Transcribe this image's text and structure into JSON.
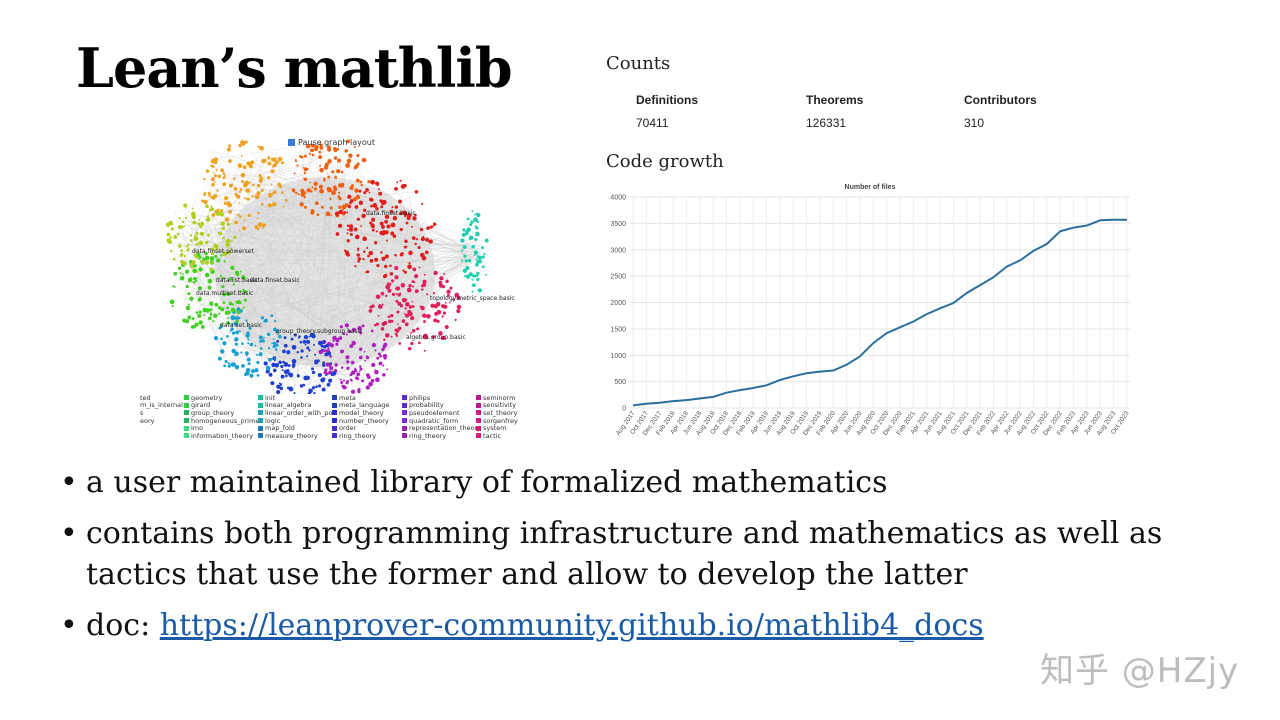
{
  "slide": {
    "title": "Lean’s mathlib",
    "graph": {
      "pause_label": "Pause graph layout",
      "node_labels": [
        "data.finset.basic",
        "data.finset.powerset",
        "data.list.basic",
        "data.finset.basic",
        "data.multiset.basic",
        "topology.metric_space.basic",
        "data.set.basic",
        "group_theory.subgroup.basic",
        "algebra.group.basic"
      ],
      "legend": [
        [
          "ted",
          "m_is_internal",
          "s",
          "eory"
        ],
        [
          "geometry",
          "girard",
          "group_theory",
          "homogeneous_prime",
          "imo",
          "information_theory"
        ],
        [
          "init",
          "linear_algebra",
          "linear_order_with_pos",
          "logic",
          "map_fold",
          "measure_theory"
        ],
        [
          "meta",
          "meta_language",
          "model_theory",
          "number_theory",
          "order",
          "ring_theory"
        ],
        [
          "philips",
          "probability",
          "pseudoelement",
          "quadratic_form",
          "representation_theory",
          "ring_theory"
        ],
        [
          "seminorm",
          "sensitivity",
          "set_theory",
          "sorgenfrey",
          "system",
          "tactic"
        ]
      ],
      "legend_colors": [
        [
          "#aaaaaa",
          "#aaaaaa",
          "#aaaaaa",
          "#aaaaaa"
        ],
        [
          "#2ecc40",
          "#2ecc40",
          "#27ae60",
          "#27ae60",
          "#3ddc84",
          "#3ddc84"
        ],
        [
          "#1abc9c",
          "#1abc9c",
          "#17a2b8",
          "#17a2b8",
          "#1f77b4",
          "#1f77b4"
        ],
        [
          "#1f3fbf",
          "#1f3fbf",
          "#2b2bd6",
          "#2b2bd6",
          "#4b2bd6",
          "#4b2bd6"
        ],
        [
          "#5b2bd6",
          "#5b2bd6",
          "#7b2bd6",
          "#7b2bd6",
          "#9b27b0",
          "#9b27b0"
        ],
        [
          "#c0198e",
          "#c0198e",
          "#d6198e",
          "#d6198e",
          "#e0197a",
          "#e0197a"
        ]
      ]
    },
    "counts": {
      "heading": "Counts",
      "items": [
        {
          "label": "Definitions",
          "value": "70411"
        },
        {
          "label": "Theorems",
          "value": "126331"
        },
        {
          "label": "Contributors",
          "value": "310"
        }
      ]
    },
    "code_growth": {
      "heading": "Code growth"
    },
    "bullets": [
      "a user maintained library of formalized mathematics",
      "contains both programming infrastructure and mathematics as well as tactics that use the former and allow to develop the latter"
    ],
    "doc": {
      "prefix": "doc: ",
      "link": "https://leanprover-community.github.io/mathlib4_docs"
    },
    "watermark": "知乎 @HZjy"
  },
  "chart_data": {
    "type": "line",
    "title": "Number of files",
    "ylim": [
      0,
      4000
    ],
    "yticks": [
      0,
      500,
      1000,
      1500,
      2000,
      2500,
      3000,
      3500,
      4000
    ],
    "xticks": [
      "Aug 2017",
      "Oct 2017",
      "Dec 2017",
      "Feb 2018",
      "Apr 2018",
      "Jun 2018",
      "Aug 2018",
      "Oct 2018",
      "Dec 2018",
      "Feb 2019",
      "Apr 2019",
      "Jun 2019",
      "Aug 2019",
      "Oct 2019",
      "Dec 2019",
      "Feb 2020",
      "Apr 2020",
      "Jun 2020",
      "Aug 2020",
      "Oct 2020",
      "Dec 2020",
      "Feb 2021",
      "Apr 2021",
      "Jun 2021",
      "Aug 2021",
      "Oct 2021",
      "Dec 2021",
      "Feb 2022",
      "Apr 2022",
      "Jun 2022",
      "Aug 2022",
      "Oct 2022",
      "Dec 2022",
      "Feb 2023",
      "Apr 2023",
      "Jun 2023",
      "Aug 2023",
      "Oct 2023"
    ],
    "series": [
      {
        "color": "#2a6f9e",
        "x": [
          "Aug 2017",
          "Oct 2017",
          "Dec 2017",
          "Feb 2018",
          "Apr 2018",
          "Jun 2018",
          "Aug 2018",
          "Oct 2018",
          "Dec 2018",
          "Feb 2019",
          "Apr 2019",
          "Jun 2019",
          "Aug 2019",
          "Oct 2019",
          "Dec 2019",
          "Feb 2020",
          "Apr 2020",
          "Jun 2020",
          "Aug 2020",
          "Oct 2020",
          "Dec 2020",
          "Feb 2021",
          "Apr 2021",
          "Jun 2021",
          "Aug 2021",
          "Oct 2021",
          "Dec 2021",
          "Feb 2022",
          "Apr 2022",
          "Jun 2022",
          "Aug 2022",
          "Oct 2022",
          "Dec 2022",
          "Feb 2023",
          "Apr 2023",
          "Jun 2023",
          "Aug 2023",
          "Oct 2023"
        ],
        "values": [
          50,
          80,
          100,
          130,
          150,
          180,
          210,
          290,
          340,
          380,
          430,
          530,
          600,
          660,
          690,
          710,
          820,
          980,
          1230,
          1420,
          1530,
          1640,
          1780,
          1890,
          1990,
          2180,
          2330,
          2480,
          2680,
          2800,
          2980,
          3110,
          3350,
          3420,
          3460,
          3560,
          3570,
          3570
        ]
      }
    ]
  }
}
